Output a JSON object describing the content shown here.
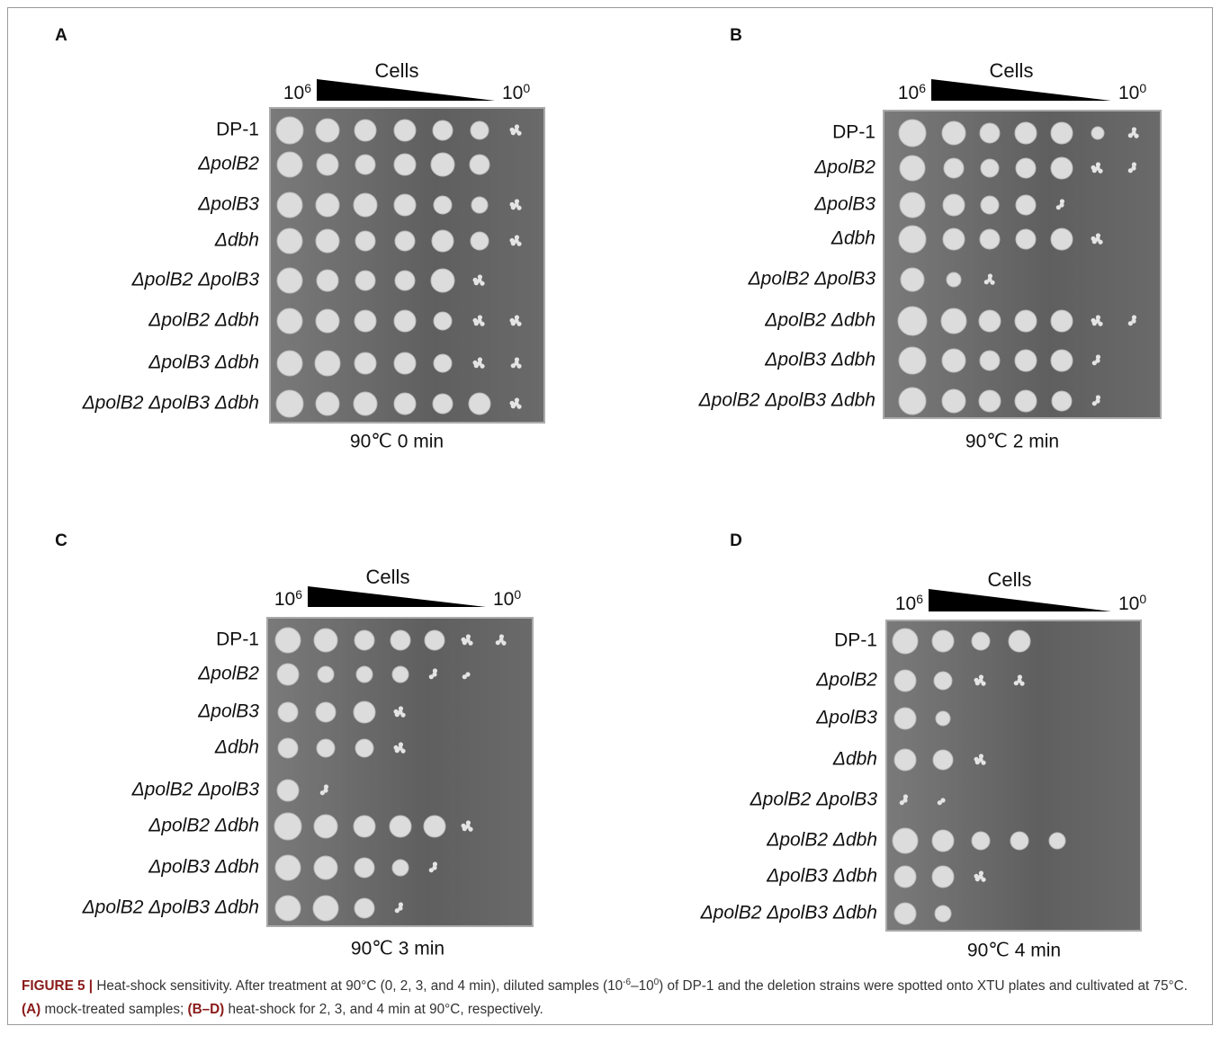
{
  "panels": [
    {
      "letter": "A",
      "cells_label": "Cells",
      "high": {
        "base": "10",
        "exp": "6"
      },
      "low": {
        "base": "10",
        "exp": "0"
      },
      "strains": [
        "DP-1",
        "ΔpolB2",
        "ΔpolB3",
        "Δdbh",
        "ΔpolB2 ΔpolB3",
        "ΔpolB2 Δdbh",
        "ΔpolB3 Δdbh",
        "ΔpolB2 ΔpolB3 Δdbh"
      ],
      "condition": "90℃ 0 min"
    },
    {
      "letter": "B",
      "cells_label": "Cells",
      "high": {
        "base": "10",
        "exp": "6"
      },
      "low": {
        "base": "10",
        "exp": "0"
      },
      "strains": [
        "DP-1",
        "ΔpolB2",
        "ΔpolB3",
        "Δdbh",
        "ΔpolB2 ΔpolB3",
        "ΔpolB2 Δdbh",
        "ΔpolB3 Δdbh",
        "ΔpolB2 ΔpolB3 Δdbh"
      ],
      "condition": "90℃ 2 min"
    },
    {
      "letter": "C",
      "cells_label": "Cells",
      "high": {
        "base": "10",
        "exp": "6"
      },
      "low": {
        "base": "10",
        "exp": "0"
      },
      "strains": [
        "DP-1",
        "ΔpolB2",
        "ΔpolB3",
        "Δdbh",
        "ΔpolB2 ΔpolB3",
        "ΔpolB2 Δdbh",
        "ΔpolB3 Δdbh",
        "ΔpolB2 ΔpolB3 Δdbh"
      ],
      "condition": "90℃ 3 min"
    },
    {
      "letter": "D",
      "cells_label": "Cells",
      "high": {
        "base": "10",
        "exp": "6"
      },
      "low": {
        "base": "10",
        "exp": "0"
      },
      "strains": [
        "DP-1",
        "ΔpolB2",
        "ΔpolB3",
        "Δdbh",
        "ΔpolB2 ΔpolB3",
        "ΔpolB2 Δdbh",
        "ΔpolB3 Δdbh",
        "ΔpolB2 ΔpolB3 Δdbh"
      ],
      "condition": "90℃ 4 min"
    }
  ],
  "caption": {
    "segments": [
      {
        "text": "FIGURE 5 |",
        "bold": true
      },
      {
        "text": " Heat-shock sensitivity. After treatment at 90°C (0, 2, 3, and 4 min), diluted samples (10"
      },
      {
        "text": "-6",
        "sup": true
      },
      {
        "text": "–10"
      },
      {
        "text": "0",
        "sup": true
      },
      {
        "text": ") of DP-1 and the deletion strains were spotted onto XTU plates and cultivated at 75°C. "
      },
      {
        "text": "(A)",
        "bold": true
      },
      {
        "text": " mock-treated samples; "
      },
      {
        "text": "(B–D)",
        "bold": true
      },
      {
        "text": " heat-shock for 2, 3, and 4 min at 90°C, respectively."
      }
    ]
  }
}
